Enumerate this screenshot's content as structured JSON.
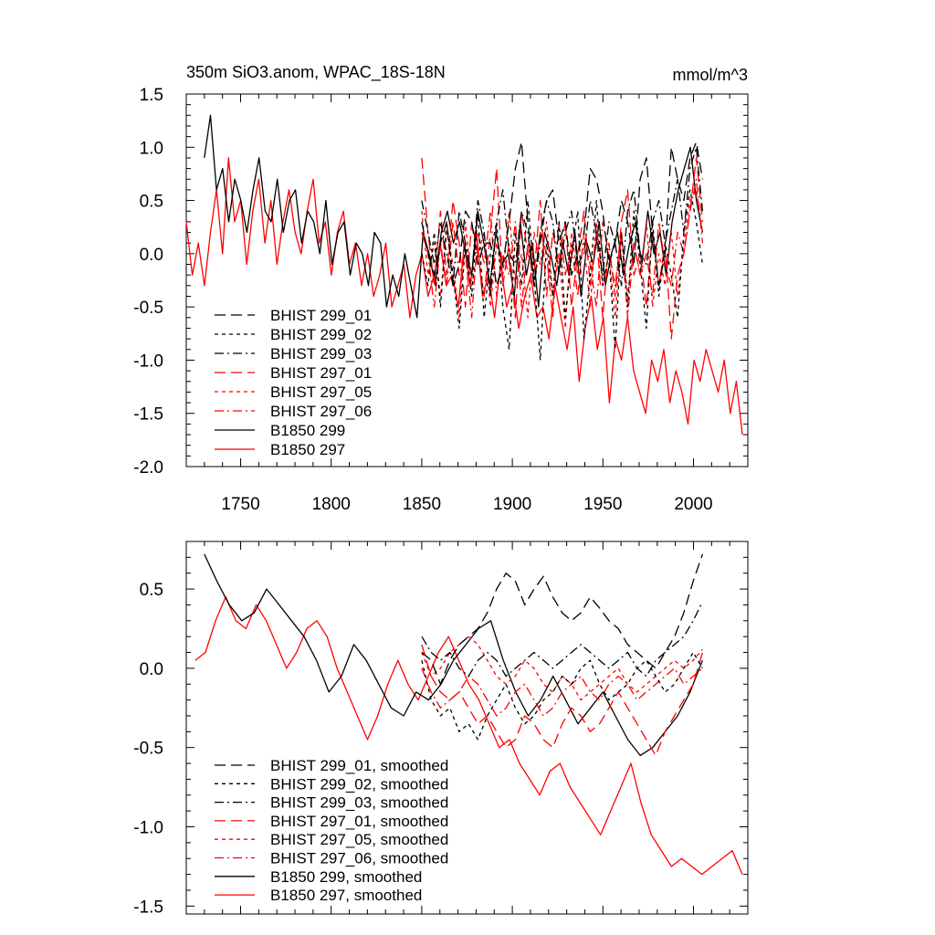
{
  "chart_data": [
    {
      "type": "line",
      "title": "350m SiO3.anom, WPAC_18S-18N",
      "units": "mmol/m^3",
      "xlim": [
        1720,
        2030
      ],
      "ylim": [
        -2.0,
        1.5
      ],
      "xticks": [
        "1750",
        "1800",
        "1850",
        "1900",
        "1950",
        "2000"
      ],
      "yticks": [
        "1.5",
        "1.0",
        "0.5",
        "0.0",
        "-0.5",
        "-1.0",
        "-1.5",
        "-2.0"
      ],
      "legend_position": "lower-left",
      "series": [
        {
          "name": "BHIST 299_01",
          "color": "#000000",
          "dash": "long-dash",
          "x_start": 1850,
          "x_end": 2005,
          "values": [
            0.3,
            0.0,
            -0.2,
            0.1,
            0.3,
            -0.3,
            -0.1,
            0.4,
            0.3,
            -0.1,
            0.1,
            0.1,
            -0.3,
            -0.1,
            0.3,
            0.8,
            1.05,
            0.3,
            -0.3,
            0.2,
            0.5,
            0.6,
            0.1,
            0.3,
            -0.2,
            0.0,
            0.2,
            0.8,
            0.7,
            0.4,
            -0.1,
            0.1,
            0.5,
            0.3,
            -0.1,
            0.7,
            0.9,
            0.2,
            -0.3,
            0.0,
            1.0,
            0.7,
            0.5,
            0.9,
            1.05,
            0.7
          ]
        },
        {
          "name": "BHIST 299_02",
          "color": "#000000",
          "dash": "short-dash",
          "x_start": 1850,
          "x_end": 2005,
          "values": [
            0.0,
            -0.3,
            0.2,
            -0.5,
            0.3,
            -0.2,
            -0.7,
            0.1,
            -0.4,
            0.4,
            -0.6,
            0.0,
            0.3,
            -0.5,
            -0.9,
            0.2,
            -0.3,
            0.5,
            -0.2,
            -1.0,
            0.1,
            -0.4,
            0.3,
            -0.6,
            0.0,
            0.4,
            -0.8,
            -0.2,
            0.5,
            -0.3,
            0.0,
            -0.9,
            0.2,
            -0.5,
            0.4,
            -0.1,
            -0.7,
            0.3,
            -0.4,
            0.1,
            -0.2,
            -0.6,
            0.2,
            0.6,
            0.3,
            -0.1
          ]
        },
        {
          "name": "BHIST 299_03",
          "color": "#000000",
          "dash": "dash-dot",
          "x_start": 1850,
          "x_end": 2005,
          "values": [
            0.5,
            0.2,
            -0.1,
            0.3,
            0.0,
            -0.3,
            0.4,
            0.1,
            -0.2,
            0.5,
            0.2,
            -0.4,
            0.3,
            0.6,
            0.0,
            -0.1,
            0.4,
            0.2,
            -0.3,
            0.1,
            0.5,
            0.3,
            -0.2,
            0.2,
            0.4,
            -0.1,
            0.0,
            0.5,
            0.2,
            -0.2,
            0.3,
            0.1,
            -0.3,
            0.4,
            0.6,
            0.0,
            -0.1,
            0.3,
            0.5,
            0.1,
            0.4,
            0.7,
            0.2,
            0.8,
            1.0,
            0.4
          ]
        },
        {
          "name": "BHIST 297_01",
          "color": "#ff0000",
          "dash": "long-dash",
          "x_start": 1850,
          "x_end": 2005,
          "values": [
            0.9,
            0.2,
            -0.3,
            0.4,
            -0.2,
            0.5,
            0.1,
            -0.5,
            0.3,
            0.0,
            -0.4,
            0.2,
            0.8,
            -0.3,
            0.1,
            -0.6,
            0.4,
            0.0,
            -0.2,
            0.5,
            -0.4,
            0.2,
            -0.1,
            0.3,
            -0.5,
            0.0,
            0.4,
            -0.3,
            0.2,
            -0.6,
            0.1,
            -0.4,
            0.3,
            0.6,
            -0.2,
            0.0,
            -0.5,
            0.2,
            -0.3,
            0.1,
            -0.8,
            -0.2,
            0.0,
            0.4,
            0.9,
            0.3
          ]
        },
        {
          "name": "BHIST 297_05",
          "color": "#ff0000",
          "dash": "short-dash",
          "x_start": 1850,
          "x_end": 2005,
          "values": [
            0.4,
            -0.2,
            0.1,
            -0.4,
            0.2,
            -0.1,
            -0.6,
            0.3,
            -0.3,
            0.0,
            0.2,
            -0.5,
            0.1,
            -0.2,
            0.4,
            -0.3,
            0.0,
            -0.6,
            0.2,
            -0.1,
            0.3,
            -0.4,
            0.0,
            -0.7,
            0.2,
            -0.2,
            0.1,
            -0.5,
            0.3,
            -0.3,
            0.0,
            -0.6,
            0.2,
            -0.4,
            0.1,
            -0.2,
            0.3,
            -0.5,
            0.0,
            -0.3,
            0.2,
            -0.4,
            0.1,
            0.5,
            0.6,
            0.2
          ]
        },
        {
          "name": "BHIST 297_06",
          "color": "#ff0000",
          "dash": "dash-dot",
          "x_start": 1850,
          "x_end": 2005,
          "values": [
            0.2,
            0.0,
            -0.5,
            0.1,
            -0.3,
            0.3,
            -0.2,
            0.0,
            -0.6,
            0.2,
            -0.1,
            0.4,
            -0.4,
            0.0,
            -0.2,
            0.3,
            -0.5,
            0.1,
            -0.3,
            0.2,
            0.0,
            -0.6,
            0.3,
            -0.2,
            0.1,
            -0.4,
            0.2,
            -0.1,
            -0.5,
            0.3,
            0.0,
            -0.3,
            0.2,
            -0.6,
            0.1,
            -0.2,
            0.0,
            -0.4,
            0.3,
            -0.1,
            -0.3,
            0.2,
            0.0,
            0.4,
            0.7,
            0.1
          ]
        },
        {
          "name": "B1850 299",
          "color": "#000000",
          "dash": "solid",
          "x_start": 1730,
          "x_end": 2005,
          "values": [
            0.9,
            1.3,
            0.6,
            0.8,
            0.3,
            0.7,
            0.5,
            0.2,
            0.6,
            0.9,
            0.4,
            0.3,
            0.7,
            0.2,
            0.5,
            0.6,
            0.1,
            0.4,
            0.3,
            0.0,
            0.5,
            -0.1,
            0.2,
            0.3,
            -0.2,
            0.1,
            0.0,
            -0.3,
            0.2,
            0.1,
            -0.5,
            -0.2,
            -0.4,
            0.0,
            -0.3,
            -0.6,
            0.2,
            0.0,
            -0.3,
            0.2,
            0.4,
            0.1,
            0.3,
            0.0,
            -0.2,
            0.4,
            0.1,
            -0.3,
            0.2,
            -0.1,
            0.0,
            -0.4,
            0.3,
            -0.2,
            0.1,
            -0.5,
            0.2,
            0.0,
            -0.3,
            0.1,
            -0.2,
            0.2,
            -0.4,
            0.1,
            -0.1,
            0.3,
            -0.3,
            0.0,
            0.2,
            -0.2,
            0.1,
            0.3,
            -0.1,
            0.4,
            0.0,
            0.2,
            -0.2,
            0.3,
            0.6,
            0.8,
            1.0,
            0.5,
            0.2
          ]
        },
        {
          "name": "B1850 297",
          "color": "#ff0000",
          "dash": "solid",
          "x_start": 1720,
          "x_end": 2027,
          "values": [
            0.3,
            -0.2,
            0.1,
            -0.3,
            0.2,
            0.6,
            0.0,
            0.9,
            0.3,
            0.5,
            -0.1,
            0.4,
            0.7,
            0.1,
            0.5,
            -0.1,
            0.3,
            0.6,
            0.2,
            0.0,
            0.4,
            0.7,
            0.1,
            0.3,
            -0.2,
            0.2,
            0.4,
            -0.1,
            0.1,
            -0.3,
            0.0,
            -0.4,
            -0.2,
            0.1,
            -0.5,
            -0.3,
            -0.1,
            -0.6,
            -0.2,
            0.0,
            -0.4,
            -0.2,
            0.1,
            -0.3,
            -0.2,
            -0.5,
            0.1,
            -0.3,
            0.2,
            -0.4,
            -0.2,
            -0.6,
            -0.1,
            -0.5,
            -0.3,
            -0.7,
            -0.4,
            -0.2,
            -0.6,
            -0.5,
            -0.8,
            -0.3,
            -0.6,
            -0.9,
            -0.5,
            -1.2,
            -0.7,
            -0.4,
            -0.9,
            -0.6,
            -1.4,
            -0.8,
            -1.0,
            -0.6,
            -1.1,
            -1.3,
            -1.5,
            -1.0,
            -1.2,
            -0.9,
            -1.4,
            -1.1,
            -1.3,
            -1.6,
            -1.0,
            -1.2,
            -0.9,
            -1.1,
            -1.3,
            -1.0,
            -1.5,
            -1.2,
            -1.7
          ]
        }
      ]
    },
    {
      "type": "line",
      "title": "",
      "xlim": [
        1720,
        2030
      ],
      "ylim": [
        -1.55,
        0.8
      ],
      "yticks": [
        "0.5",
        "0.0",
        "-0.5",
        "-1.0",
        "-1.5"
      ],
      "legend_position": "lower-left",
      "series": [
        {
          "name": "BHIST 299_01, smoothed",
          "color": "#000000",
          "dash": "long-dash",
          "x_start": 1850,
          "x_end": 2005,
          "values": [
            0.1,
            0.05,
            -0.1,
            0.05,
            0.15,
            0.2,
            0.25,
            0.35,
            0.5,
            0.6,
            0.55,
            0.4,
            0.5,
            0.58,
            0.45,
            0.35,
            0.3,
            0.35,
            0.45,
            0.38,
            0.3,
            0.25,
            0.15,
            0.1,
            0.05,
            0.0,
            0.1,
            0.2,
            0.35,
            0.55,
            0.72
          ]
        },
        {
          "name": "BHIST 299_02, smoothed",
          "color": "#000000",
          "dash": "short-dash",
          "x_start": 1850,
          "x_end": 2005,
          "values": [
            0.05,
            -0.2,
            -0.3,
            -0.25,
            -0.4,
            -0.35,
            -0.45,
            -0.3,
            -0.2,
            -0.1,
            -0.25,
            -0.35,
            -0.3,
            -0.2,
            -0.15,
            -0.05,
            -0.1,
            0.0,
            0.05,
            -0.1,
            -0.2,
            -0.15,
            -0.1,
            0.0,
            0.05,
            -0.05,
            -0.15,
            -0.1,
            0.0,
            0.1,
            0.0
          ]
        },
        {
          "name": "BHIST 299_03, smoothed",
          "color": "#000000",
          "dash": "dash-dot",
          "x_start": 1850,
          "x_end": 2005,
          "values": [
            0.2,
            0.1,
            0.05,
            0.1,
            0.0,
            -0.05,
            0.05,
            0.1,
            0.05,
            -0.05,
            0.0,
            0.05,
            0.1,
            0.05,
            0.0,
            0.05,
            0.1,
            0.15,
            0.1,
            0.05,
            0.0,
            0.05,
            0.1,
            0.0,
            -0.05,
            0.05,
            0.1,
            0.15,
            0.2,
            0.3,
            0.42
          ]
        },
        {
          "name": "BHIST 297_01, smoothed",
          "color": "#ff0000",
          "dash": "long-dash",
          "x_start": 1850,
          "x_end": 2005,
          "values": [
            0.15,
            -0.05,
            -0.15,
            -0.2,
            -0.15,
            -0.25,
            -0.35,
            -0.3,
            -0.4,
            -0.5,
            -0.45,
            -0.3,
            -0.35,
            -0.45,
            -0.5,
            -0.35,
            -0.25,
            -0.3,
            -0.4,
            -0.35,
            -0.25,
            -0.15,
            -0.25,
            -0.35,
            -0.45,
            -0.55,
            -0.4,
            -0.3,
            -0.2,
            -0.1,
            0.1
          ]
        },
        {
          "name": "BHIST 297_05, smoothed",
          "color": "#ff0000",
          "dash": "short-dash",
          "x_start": 1850,
          "x_end": 2005,
          "values": [
            0.1,
            -0.05,
            0.0,
            0.1,
            0.15,
            0.2,
            0.15,
            0.05,
            -0.05,
            -0.1,
            -0.05,
            0.05,
            0.0,
            -0.1,
            -0.15,
            -0.05,
            -0.1,
            -0.2,
            -0.15,
            -0.1,
            -0.05,
            0.0,
            -0.1,
            -0.15,
            -0.1,
            -0.05,
            0.0,
            0.05,
            0.0,
            0.05,
            0.12
          ]
        },
        {
          "name": "BHIST 297_06, smoothed",
          "color": "#ff0000",
          "dash": "dash-dot",
          "x_start": 1850,
          "x_end": 2005,
          "values": [
            0.0,
            -0.15,
            -0.25,
            -0.2,
            -0.15,
            -0.05,
            -0.1,
            -0.2,
            -0.3,
            -0.25,
            -0.15,
            -0.1,
            -0.2,
            -0.3,
            -0.25,
            -0.15,
            -0.1,
            -0.05,
            -0.15,
            -0.2,
            -0.1,
            -0.05,
            -0.1,
            -0.2,
            -0.15,
            -0.1,
            -0.05,
            0.0,
            -0.1,
            -0.05,
            0.0
          ]
        },
        {
          "name": "B1850 299, smoothed",
          "color": "#000000",
          "dash": "solid",
          "x_start": 1730,
          "x_end": 2005,
          "values": [
            0.72,
            0.55,
            0.4,
            0.3,
            0.35,
            0.5,
            0.4,
            0.3,
            0.2,
            0.05,
            -0.15,
            -0.05,
            0.15,
            0.05,
            -0.1,
            -0.25,
            -0.3,
            -0.15,
            -0.2,
            -0.1,
            0.05,
            0.15,
            0.25,
            0.3,
            0.05,
            -0.15,
            -0.3,
            -0.2,
            -0.05,
            -0.2,
            -0.35,
            -0.25,
            -0.15,
            -0.3,
            -0.45,
            -0.55,
            -0.5,
            -0.4,
            -0.3,
            -0.15,
            0.05
          ]
        },
        {
          "name": "B1850 297, smoothed",
          "color": "#ff0000",
          "dash": "solid",
          "x_start": 1725,
          "x_end": 2027,
          "values": [
            0.05,
            0.1,
            0.3,
            0.45,
            0.3,
            0.25,
            0.4,
            0.3,
            0.15,
            0.0,
            0.1,
            0.25,
            0.3,
            0.2,
            0.0,
            -0.15,
            -0.3,
            -0.45,
            -0.3,
            -0.1,
            0.05,
            -0.1,
            -0.2,
            -0.05,
            0.1,
            0.2,
            0.05,
            -0.1,
            -0.2,
            -0.35,
            -0.5,
            -0.45,
            -0.6,
            -0.7,
            -0.8,
            -0.65,
            -0.6,
            -0.75,
            -0.85,
            -0.95,
            -1.05,
            -0.9,
            -0.75,
            -0.6,
            -0.85,
            -1.05,
            -1.15,
            -1.25,
            -1.2,
            -1.25,
            -1.3,
            -1.25,
            -1.2,
            -1.15,
            -1.3
          ]
        }
      ]
    }
  ]
}
